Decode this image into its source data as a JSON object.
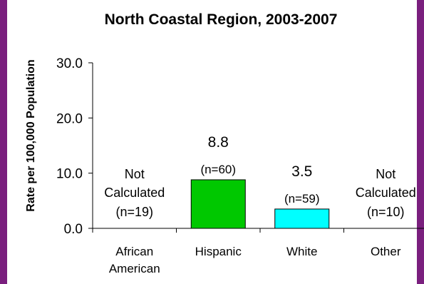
{
  "chart_data": {
    "type": "bar",
    "title": "North Coastal Region, 2003-2007",
    "ylabel": "Rate per 100,000 Population",
    "xlabel": "",
    "ylim": [
      0,
      30
    ],
    "yticks": [
      "0.0",
      "10.0",
      "20.0",
      "30.0"
    ],
    "ytick_values": [
      0,
      10,
      20,
      30
    ],
    "grid": false,
    "categories": [
      {
        "lines": [
          "African",
          "American"
        ]
      },
      {
        "lines": [
          "Hispanic"
        ]
      },
      {
        "lines": [
          "White"
        ]
      },
      {
        "lines": [
          "Other"
        ]
      }
    ],
    "values": [
      null,
      8.8,
      3.5,
      null
    ],
    "value_labels": [
      "",
      "8.8",
      "3.5",
      ""
    ],
    "n_labels": [
      "(n=19)",
      "(n=60)",
      "(n=59)",
      "(n=10)"
    ],
    "not_calculated_label": [
      "Not",
      "Calculated"
    ],
    "bar_colors": [
      "#ffffff",
      "#00c800",
      "#00ffff",
      "#ffffff"
    ],
    "border_color": "#7a1f7e"
  }
}
